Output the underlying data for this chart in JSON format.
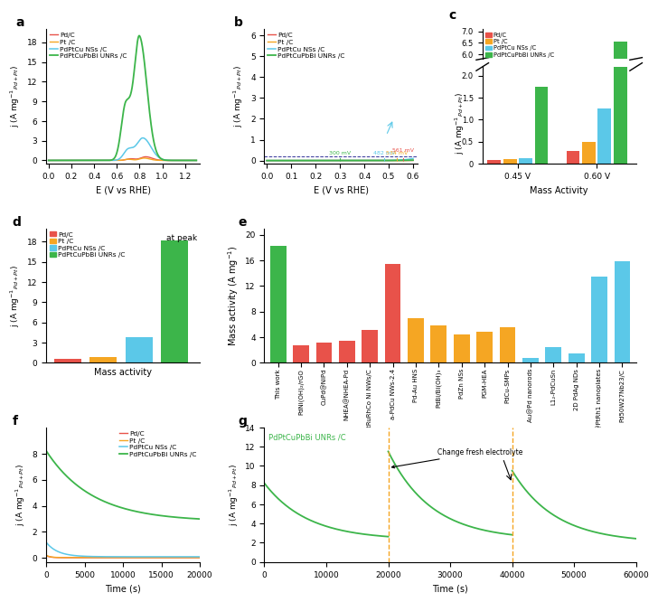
{
  "colors": {
    "pd": "#e8524a",
    "pt": "#f5a623",
    "pdptcu": "#5bc8e8",
    "pdptcupbbi": "#3cb54a"
  },
  "panel_c": {
    "values_045": [
      0.09,
      0.1,
      0.12,
      1.75
    ],
    "values_060": [
      0.28,
      0.5,
      1.25,
      6.55
    ]
  },
  "panel_d": {
    "values": [
      0.65,
      0.9,
      3.8,
      18.2
    ]
  },
  "panel_e": {
    "bars": [
      {
        "label": "This work",
        "value": 18.2,
        "color": "#3cb54a"
      },
      {
        "label": "PdNi(OH)₂/rGO",
        "value": 2.8,
        "color": "#e8524a"
      },
      {
        "label": "CuPd@NiPd",
        "value": 3.2,
        "color": "#e8524a"
      },
      {
        "label": "NHEA@NHEA-Pd",
        "value": 3.5,
        "color": "#e8524a"
      },
      {
        "label": "PtRuRhCo Ni NWs/C",
        "value": 5.2,
        "color": "#e8524a"
      },
      {
        "label": "a-PdCu NWs-2.4",
        "value": 15.5,
        "color": "#e8524a"
      },
      {
        "label": "Pd-Au HNS",
        "value": 7.0,
        "color": "#f5a623"
      },
      {
        "label": "PdBi/Bi(OH)₃",
        "value": 5.8,
        "color": "#f5a623"
      },
      {
        "label": "PdZn NSs",
        "value": 4.5,
        "color": "#f5a623"
      },
      {
        "label": "PGM-HEA",
        "value": 4.8,
        "color": "#f5a623"
      },
      {
        "label": "PdCu-SMPs",
        "value": 5.5,
        "color": "#f5a623"
      },
      {
        "label": "Au@Pd nanorods",
        "value": 0.8,
        "color": "#5bc8e8"
      },
      {
        "label": "L1₂-PdCuSn",
        "value": 2.5,
        "color": "#5bc8e8"
      },
      {
        "label": "2D PdAg NDs",
        "value": 1.5,
        "color": "#5bc8e8"
      },
      {
        "label": "PtBi@PtRh1 nanoplates",
        "value": 13.5,
        "color": "#5bc8e8"
      },
      {
        "label": "Pd50W27Nb23/C",
        "value": 15.8,
        "color": "#5bc8e8"
      }
    ]
  }
}
